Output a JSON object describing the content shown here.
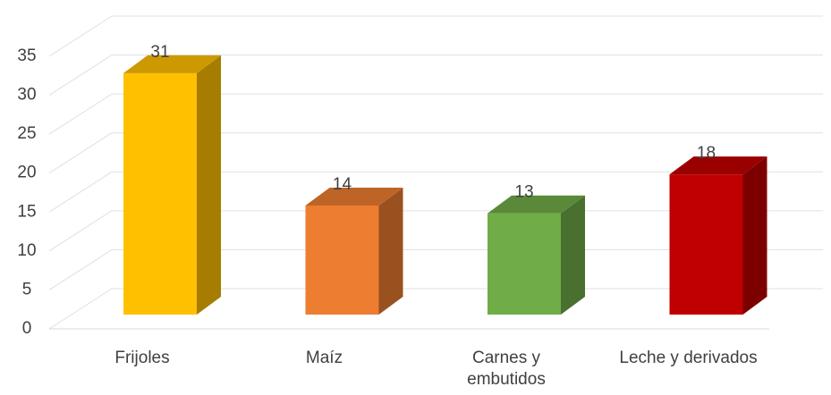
{
  "chart_data": {
    "type": "bar3d",
    "categories": [
      "Frijoles",
      "Maíz",
      "Carnes y embutidos",
      "Leche y derivados"
    ],
    "values": [
      31,
      14,
      13,
      18
    ],
    "colors": [
      "#FFC000",
      "#ED7D31",
      "#70AD47",
      "#C00000"
    ],
    "ylim": [
      0,
      35
    ],
    "yticks": [
      0,
      5,
      10,
      15,
      20,
      25,
      30,
      35
    ],
    "grid": true
  }
}
